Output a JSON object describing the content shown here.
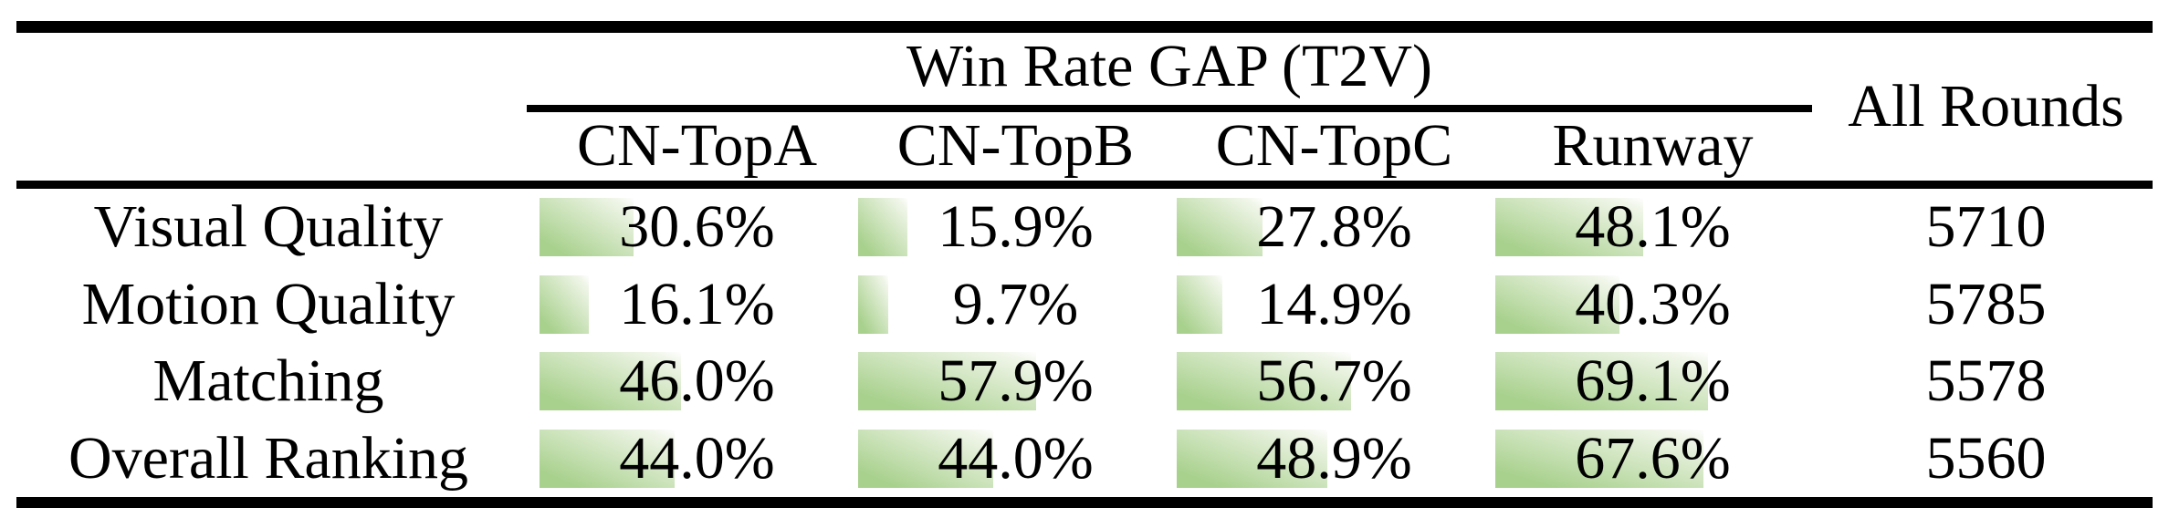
{
  "table": {
    "group_header": "Win Rate GAP (T2V)",
    "all_rounds_header": "All Rounds",
    "model_columns": [
      "CN-TopA",
      "CN-TopB",
      "CN-TopC",
      "Runway"
    ],
    "rows": [
      {
        "label": "Visual Quality",
        "cells": [
          {
            "display": "30.6%",
            "pct": 30.6
          },
          {
            "display": "15.9%",
            "pct": 15.9
          },
          {
            "display": "27.8%",
            "pct": 27.8
          },
          {
            "display": "48.1%",
            "pct": 48.1
          }
        ],
        "all_rounds": "5710"
      },
      {
        "label": "Motion Quality",
        "cells": [
          {
            "display": "16.1%",
            "pct": 16.1
          },
          {
            "display": "9.7%",
            "pct": 9.7
          },
          {
            "display": "14.9%",
            "pct": 14.9
          },
          {
            "display": "40.3%",
            "pct": 40.3
          }
        ],
        "all_rounds": "5785"
      },
      {
        "label": "Matching",
        "cells": [
          {
            "display": "46.0%",
            "pct": 46.0
          },
          {
            "display": "57.9%",
            "pct": 57.9
          },
          {
            "display": "56.7%",
            "pct": 56.7
          },
          {
            "display": "69.1%",
            "pct": 69.1
          }
        ],
        "all_rounds": "5578"
      },
      {
        "label": "Overall Ranking",
        "cells": [
          {
            "display": "44.0%",
            "pct": 44.0
          },
          {
            "display": "44.0%",
            "pct": 44.0
          },
          {
            "display": "48.9%",
            "pct": 48.9
          },
          {
            "display": "67.6%",
            "pct": 67.6
          }
        ],
        "all_rounds": "5560"
      }
    ],
    "colors": {
      "bar_green": "#a9d18e",
      "bar_fade": "#f1f6ea",
      "rule_black": "#000000"
    }
  },
  "chart_data": {
    "type": "table",
    "title": "Win Rate GAP (T2V)",
    "columns": [
      "CN-TopA",
      "CN-TopB",
      "CN-TopC",
      "Runway",
      "All Rounds"
    ],
    "row_labels": [
      "Visual Quality",
      "Motion Quality",
      "Matching",
      "Overall Ranking"
    ],
    "series": [
      {
        "name": "CN-TopA",
        "values": [
          30.6,
          16.1,
          46.0,
          44.0
        ]
      },
      {
        "name": "CN-TopB",
        "values": [
          15.9,
          9.7,
          57.9,
          44.0
        ]
      },
      {
        "name": "CN-TopC",
        "values": [
          27.8,
          14.9,
          56.7,
          48.9
        ]
      },
      {
        "name": "Runway",
        "values": [
          48.1,
          40.3,
          69.1,
          67.6
        ]
      }
    ],
    "all_rounds": [
      5710,
      5785,
      5578,
      5560
    ],
    "value_unit": "%",
    "cell_bar_note": "green left-to-right fading bar behind each percentage, width proportional to value (100% = full cell width)"
  }
}
